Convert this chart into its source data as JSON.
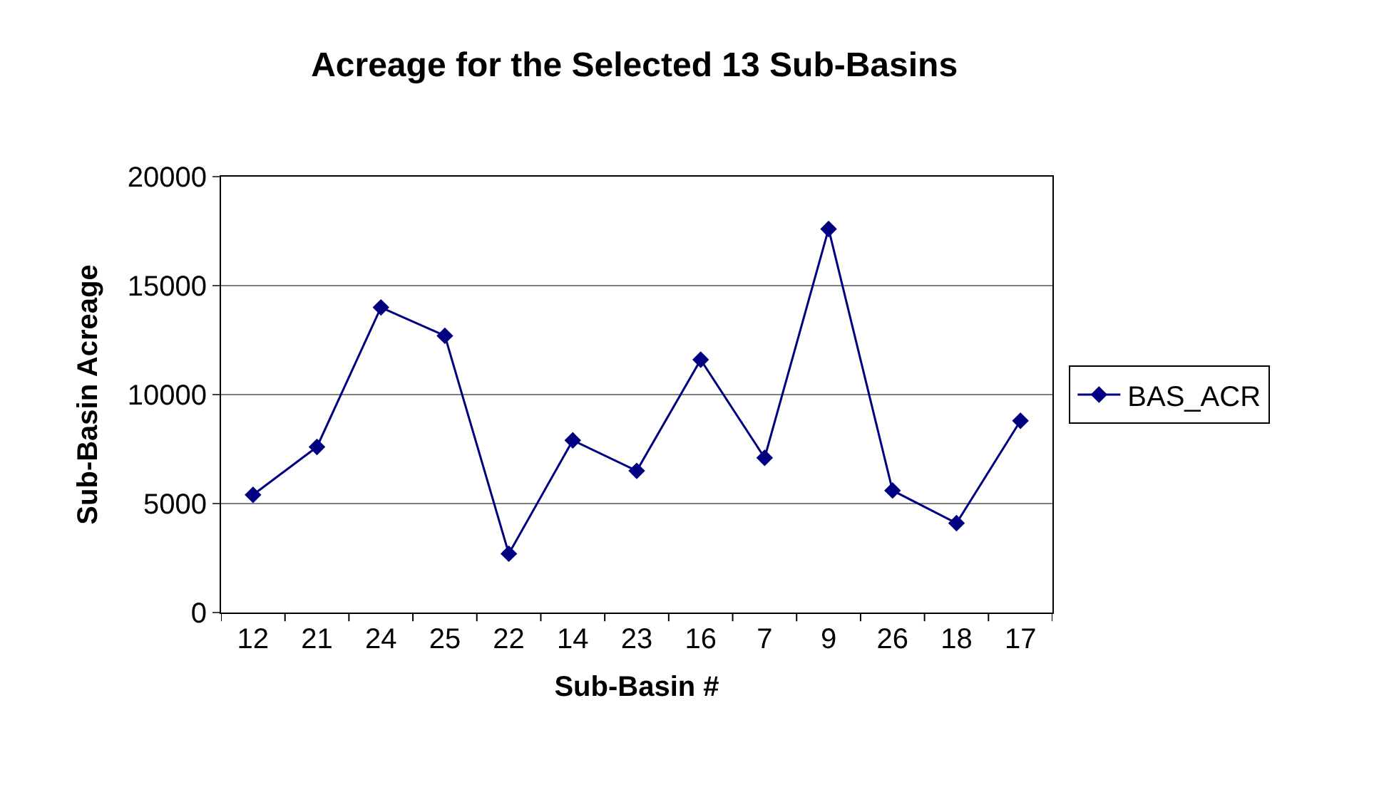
{
  "chart_data": {
    "type": "line",
    "title": "Acreage for the Selected 13 Sub-Basins",
    "xlabel": "Sub-Basin #",
    "ylabel": "Sub-Basin Acreage",
    "categories": [
      "12",
      "21",
      "24",
      "25",
      "22",
      "14",
      "23",
      "16",
      "7",
      "9",
      "26",
      "18",
      "17"
    ],
    "series": [
      {
        "name": "BAS_ACR",
        "color": "#000080",
        "values": [
          5400,
          7600,
          14000,
          12700,
          2700,
          7900,
          6500,
          11600,
          7100,
          17600,
          5600,
          4100,
          8800
        ]
      }
    ],
    "ylim": [
      0,
      20000
    ],
    "yticks": [
      0,
      5000,
      10000,
      15000,
      20000
    ],
    "grid": "y",
    "legend": "right",
    "marker": "diamond",
    "line_style": "solid"
  }
}
